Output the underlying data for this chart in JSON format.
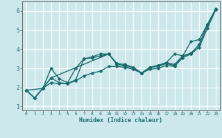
{
  "xlabel": "Humidex (Indice chaleur)",
  "background_color": "#cde8ec",
  "grid_color": "#ffffff",
  "line_color": "#1a6b6b",
  "xlim": [
    -0.5,
    23.5
  ],
  "ylim": [
    0.8,
    6.5
  ],
  "xticks": [
    0,
    1,
    2,
    3,
    4,
    5,
    6,
    7,
    8,
    9,
    10,
    11,
    12,
    13,
    14,
    15,
    16,
    17,
    18,
    19,
    20,
    21,
    22,
    23
  ],
  "yticks": [
    1,
    2,
    3,
    4,
    5,
    6
  ],
  "series": [
    {
      "x": [
        0,
        1,
        2,
        3,
        4,
        5,
        6,
        7,
        8,
        9,
        10,
        11,
        12,
        13,
        14,
        15,
        16,
        17,
        18,
        19,
        20,
        21,
        22,
        23
      ],
      "y": [
        1.85,
        1.45,
        1.95,
        2.5,
        2.25,
        2.2,
        2.4,
        3.5,
        3.6,
        3.75,
        3.75,
        3.25,
        3.2,
        3.05,
        2.75,
        3.05,
        3.15,
        3.3,
        3.75,
        3.65,
        4.4,
        4.5,
        5.3,
        6.1
      ],
      "marker": "D",
      "markersize": 2.5,
      "linewidth": 1.0
    },
    {
      "x": [
        0,
        1,
        2,
        3,
        4,
        5,
        6,
        7,
        8,
        9,
        10,
        11,
        12,
        13,
        14,
        15,
        16,
        17,
        18,
        19,
        20,
        21,
        22,
        23
      ],
      "y": [
        1.85,
        1.45,
        1.95,
        3.0,
        2.45,
        2.25,
        3.0,
        3.5,
        3.55,
        3.65,
        3.75,
        3.2,
        3.15,
        3.05,
        2.75,
        3.05,
        3.15,
        3.3,
        3.2,
        3.65,
        3.75,
        4.25,
        5.28,
        6.05
      ],
      "marker": "D",
      "markersize": 2.5,
      "linewidth": 1.0
    },
    {
      "x": [
        0,
        2,
        3,
        10,
        11,
        12,
        13,
        14,
        15,
        16,
        17,
        18,
        19,
        20,
        21,
        22,
        23
      ],
      "y": [
        1.85,
        1.95,
        2.5,
        3.75,
        3.25,
        3.1,
        2.95,
        2.75,
        3.05,
        3.1,
        3.25,
        3.15,
        3.65,
        3.8,
        4.22,
        5.28,
        6.1
      ],
      "marker": "D",
      "markersize": 2.5,
      "linewidth": 1.0
    },
    {
      "x": [
        0,
        1,
        2,
        3,
        4,
        5,
        6,
        7,
        8,
        9,
        10,
        11,
        12,
        13,
        14,
        15,
        16,
        17,
        18,
        19,
        20,
        21,
        22,
        23
      ],
      "y": [
        1.85,
        1.45,
        1.95,
        2.25,
        2.2,
        2.2,
        2.35,
        2.6,
        2.75,
        2.85,
        3.1,
        3.1,
        3.05,
        2.95,
        2.75,
        2.95,
        3.0,
        3.15,
        3.1,
        3.55,
        3.75,
        4.1,
        5.1,
        6.05
      ],
      "marker": "D",
      "markersize": 2.5,
      "linewidth": 1.0
    }
  ]
}
